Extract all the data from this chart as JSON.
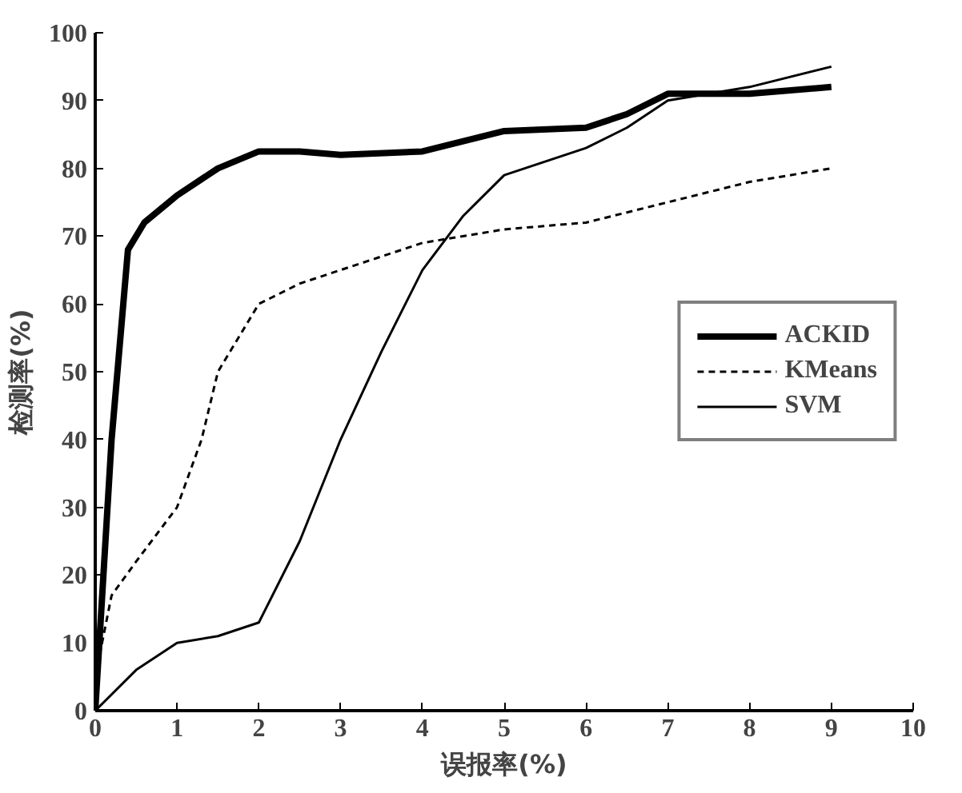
{
  "chart_data": {
    "type": "line",
    "xlabel": "误报率(%)",
    "ylabel": "检测率(%)",
    "xlim": [
      0,
      10
    ],
    "ylim": [
      0,
      100
    ],
    "xticks": [
      0,
      1,
      2,
      3,
      4,
      5,
      6,
      7,
      8,
      9,
      10
    ],
    "yticks": [
      0,
      10,
      20,
      30,
      40,
      50,
      60,
      70,
      80,
      90,
      100
    ],
    "grid": false,
    "legend": "right",
    "series": [
      {
        "name": "ACKID",
        "color": "#000000",
        "line_style": "solid",
        "x": [
          0,
          0.2,
          0.4,
          0.6,
          1,
          1.5,
          2,
          2.5,
          3,
          4,
          4.5,
          5,
          6,
          6.5,
          7,
          8,
          9
        ],
        "values": [
          0,
          40,
          68,
          72,
          76,
          80,
          82.5,
          82.5,
          82,
          82.5,
          84,
          85.5,
          86,
          88,
          91,
          91,
          92
        ]
      },
      {
        "name": "KMeans",
        "color": "#000000",
        "line_style": "dashed",
        "x": [
          0,
          0.2,
          0.5,
          1,
          1.3,
          1.5,
          2,
          2.5,
          3,
          4,
          5,
          6,
          7,
          8,
          9
        ],
        "values": [
          5,
          17,
          22,
          30,
          40,
          50,
          60,
          63,
          65,
          69,
          71,
          72,
          75,
          78,
          80
        ]
      },
      {
        "name": "SVM",
        "color": "#000000",
        "line_style": "solid",
        "x": [
          0,
          0.5,
          1,
          1.5,
          2,
          2.5,
          3,
          3.5,
          4,
          4.5,
          5,
          6,
          6.5,
          7,
          8,
          9
        ],
        "values": [
          0,
          6,
          10,
          11,
          13,
          25,
          40,
          53,
          65,
          73,
          79,
          83,
          86,
          90,
          92,
          95
        ]
      }
    ]
  }
}
